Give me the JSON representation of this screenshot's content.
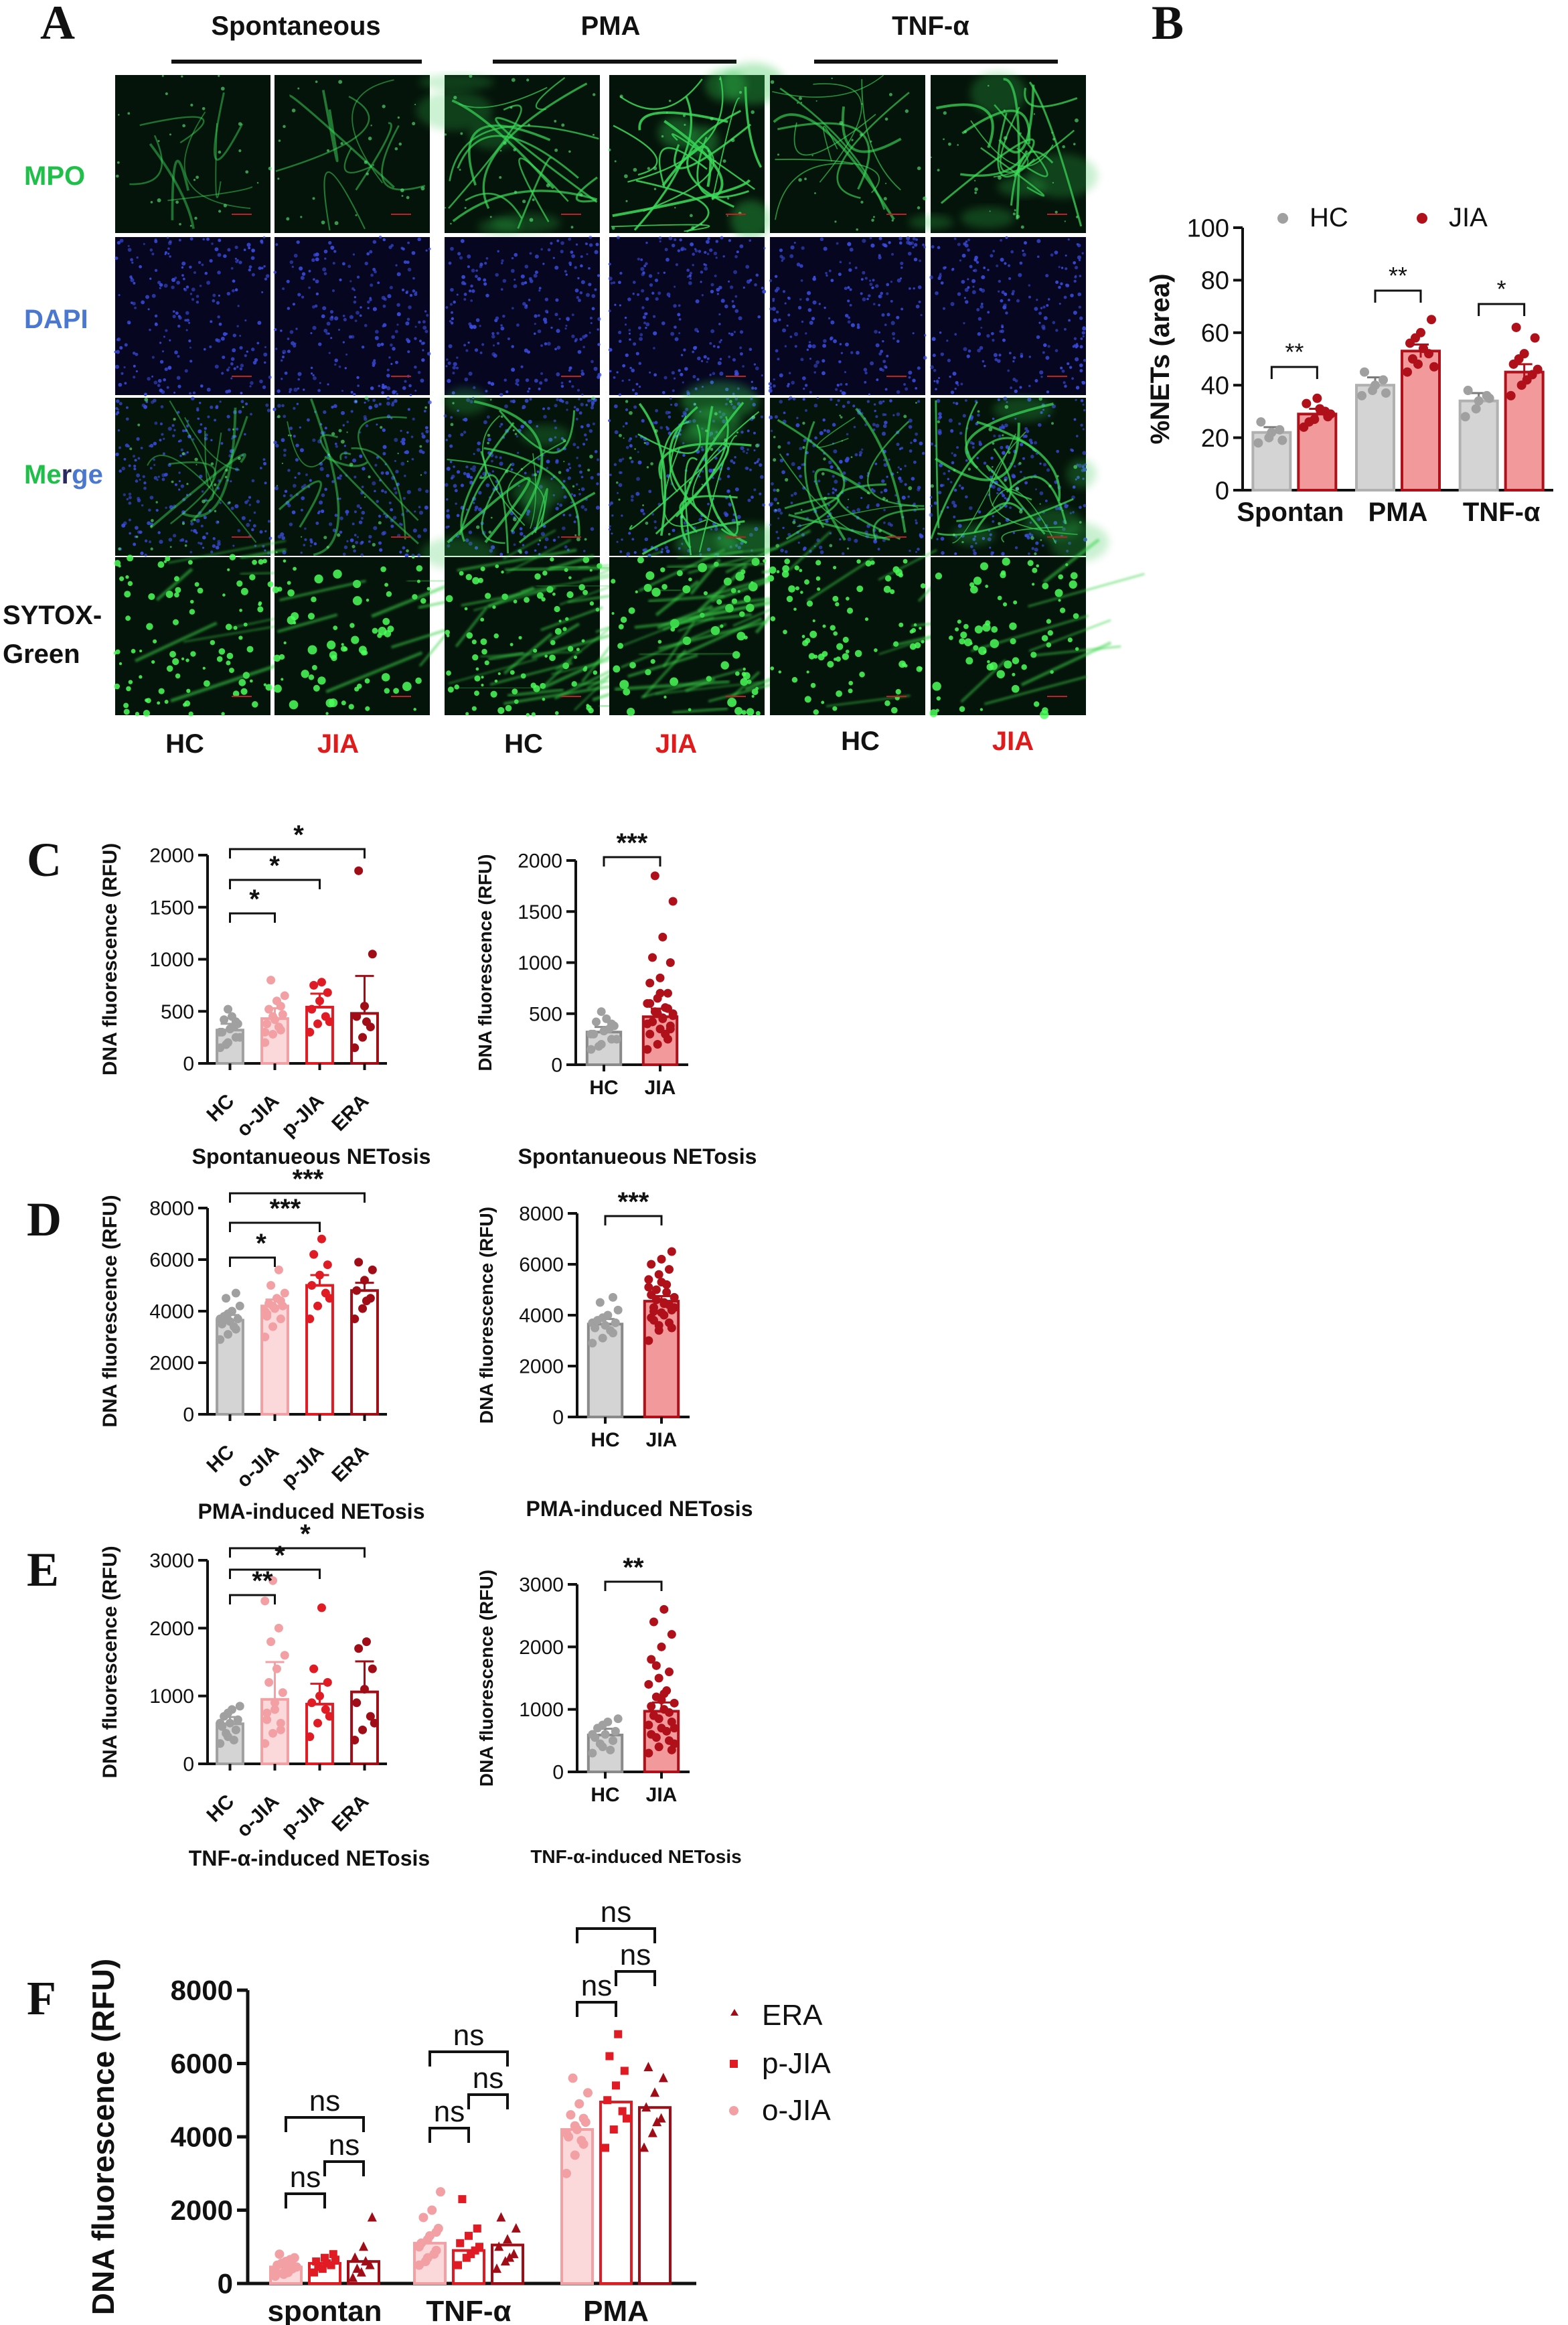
{
  "panels": {
    "A": {
      "letter": "A",
      "columns": [
        "Spontaneous",
        "PMA",
        "TNF-α"
      ],
      "rows": [
        {
          "label": "MPO",
          "color": "#1fbf4a"
        },
        {
          "label": "DAPI",
          "color": "#4a78d0"
        },
        {
          "label_parts": [
            {
              "t": "Me",
              "c": "#1fbf4a"
            },
            {
              "t": "r",
              "c": "#2a2a60"
            },
            {
              "t": "ge",
              "c": "#4a78d0"
            }
          ]
        },
        {
          "label_lines": [
            "SYTOX-",
            "Green"
          ],
          "color": "#111111"
        }
      ],
      "groups": [
        {
          "label": "HC",
          "color": "#111111"
        },
        {
          "label": "JIA",
          "color": "#e01b1b"
        },
        {
          "label": "HC",
          "color": "#111111"
        },
        {
          "label": "JIA",
          "color": "#e01b1b"
        },
        {
          "label": "HC",
          "color": "#111111"
        },
        {
          "label": "JIA",
          "color": "#e01b1b"
        }
      ]
    },
    "B": {
      "letter": "B"
    },
    "C": {
      "letter": "C",
      "caption": "Spontanueous NETosis"
    },
    "D": {
      "letter": "D",
      "caption": "PMA-induced NETosis"
    },
    "E": {
      "letter": "E",
      "caption": "TNF-α-induced NETosis"
    },
    "F": {
      "letter": "F"
    }
  },
  "colors": {
    "hc": "#a0a0a0",
    "hc_bar": "#d4d4d4",
    "jia": "#b0101a",
    "jia_bar": "#f2999c",
    "ojia": "#f2a0a4",
    "pjia": "#e01b24",
    "era": "#a00d17"
  },
  "chart_data": [
    {
      "id": "B",
      "type": "bar",
      "ylabel": "%NETs (area)",
      "ylim": [
        0,
        100
      ],
      "yticks": [
        0,
        20,
        40,
        60,
        80,
        100
      ],
      "categories": [
        "Spontan",
        "PMA",
        "TNF-α"
      ],
      "legend": {
        "position": "top",
        "entries": [
          "HC",
          "JIA"
        ]
      },
      "series": [
        {
          "name": "HC",
          "values": [
            22,
            40,
            34
          ],
          "sem": [
            2,
            3,
            3
          ],
          "points": [
            [
              18,
              20,
              23,
              26,
              22,
              19
            ],
            [
              36,
              38,
              42,
              45,
              40,
              37
            ],
            [
              28,
              31,
              36,
              38,
              34,
              35
            ]
          ]
        },
        {
          "name": "JIA",
          "values": [
            29,
            53,
            45
          ],
          "sem": [
            2,
            2.5,
            3
          ],
          "points": [
            [
              24,
              27,
              30,
              33,
              35,
              28,
              26,
              31,
              29
            ],
            [
              45,
              48,
              52,
              56,
              60,
              65,
              50,
              54,
              47,
              58
            ],
            [
              36,
              40,
              44,
              48,
              52,
              58,
              62,
              42,
              46,
              50
            ]
          ]
        }
      ],
      "significance": [
        {
          "between": [
            0,
            0
          ],
          "label": "**"
        },
        {
          "between": [
            1,
            1
          ],
          "label": "**"
        },
        {
          "between": [
            2,
            2
          ],
          "label": "*"
        }
      ]
    },
    {
      "id": "C-left",
      "type": "bar",
      "ylabel": "DNA fluorescence (RFU)",
      "ylim": [
        0,
        2000
      ],
      "yticks": [
        0,
        500,
        1000,
        1500,
        2000
      ],
      "categories": [
        "HC",
        "o-JIA",
        "p-JIA",
        "ERA"
      ],
      "values": [
        320,
        430,
        540,
        480
      ],
      "err": [
        60,
        100,
        130,
        360
      ],
      "points": [
        [
          150,
          200,
          250,
          300,
          330,
          380,
          420,
          450,
          250,
          180,
          350,
          300,
          520,
          400
        ],
        [
          200,
          280,
          320,
          380,
          420,
          470,
          520,
          600,
          650,
          800,
          350,
          300,
          450,
          550
        ],
        [
          300,
          380,
          450,
          520,
          600,
          680,
          750,
          780,
          400
        ],
        [
          150,
          250,
          350,
          450,
          550,
          1050,
          1850,
          400
        ]
      ],
      "significance": [
        {
          "pair": [
            "HC",
            "o-JIA"
          ],
          "label": "*"
        },
        {
          "pair": [
            "HC",
            "p-JIA"
          ],
          "label": "*"
        },
        {
          "pair": [
            "HC",
            "ERA"
          ],
          "label": "*"
        }
      ]
    },
    {
      "id": "C-right",
      "type": "bar",
      "ylabel": "DNA fluorescence (RFU)",
      "ylim": [
        0,
        2000
      ],
      "yticks": [
        0,
        500,
        1000,
        1500,
        2000
      ],
      "categories": [
        "HC",
        "JIA"
      ],
      "values": [
        320,
        470
      ],
      "err": [
        50,
        80
      ],
      "points": [
        [
          150,
          200,
          250,
          300,
          330,
          380,
          420,
          450,
          250,
          180,
          350,
          300,
          520,
          400
        ],
        [
          150,
          200,
          250,
          300,
          350,
          380,
          420,
          450,
          480,
          520,
          560,
          600,
          650,
          700,
          800,
          850,
          1000,
          1050,
          1250,
          1600,
          1850,
          300,
          400,
          500,
          550,
          600,
          700,
          350,
          420,
          460,
          500
        ]
      ],
      "significance": [
        {
          "pair": [
            "HC",
            "JIA"
          ],
          "label": "***"
        }
      ]
    },
    {
      "id": "D-left",
      "type": "bar",
      "ylabel": "DNA fluorescence (RFU)",
      "ylim": [
        0,
        8000
      ],
      "yticks": [
        0,
        2000,
        4000,
        6000,
        8000
      ],
      "categories": [
        "HC",
        "o-JIA",
        "p-JIA",
        "ERA"
      ],
      "values": [
        3650,
        4200,
        5000,
        4800
      ],
      "err": [
        200,
        250,
        400,
        300
      ],
      "points": [
        [
          2900,
          3100,
          3300,
          3500,
          3600,
          3700,
          3800,
          4000,
          4200,
          4500,
          3400,
          3700,
          3900,
          4700
        ],
        [
          3000,
          3400,
          3700,
          3900,
          4100,
          4200,
          4300,
          4500,
          4700,
          5000,
          5600,
          4000,
          4200,
          4400,
          3800
        ],
        [
          3700,
          4200,
          4700,
          5000,
          5400,
          5800,
          6200,
          6800,
          4500
        ],
        [
          3700,
          4100,
          4500,
          4800,
          5200,
          5600,
          5900,
          4400
        ]
      ],
      "significance": [
        {
          "pair": [
            "HC",
            "o-JIA"
          ],
          "label": "*"
        },
        {
          "pair": [
            "HC",
            "p-JIA"
          ],
          "label": "***"
        },
        {
          "pair": [
            "HC",
            "ERA"
          ],
          "label": "***"
        }
      ]
    },
    {
      "id": "D-right",
      "type": "bar",
      "ylabel": "DNA fluorescence (RFU)",
      "ylim": [
        0,
        8000
      ],
      "yticks": [
        0,
        2000,
        4000,
        6000,
        8000
      ],
      "categories": [
        "HC",
        "JIA"
      ],
      "values": [
        3650,
        4550
      ],
      "err": [
        200,
        200
      ],
      "points": [
        [
          2900,
          3100,
          3300,
          3500,
          3600,
          3700,
          3800,
          4000,
          4200,
          4500,
          3400,
          3700,
          3900,
          4700
        ],
        [
          3000,
          3400,
          3700,
          3900,
          4100,
          4200,
          4300,
          4500,
          4700,
          5000,
          5200,
          5400,
          5600,
          5800,
          6000,
          6200,
          6500,
          3800,
          4000,
          4300,
          4600,
          4900,
          5100,
          3600,
          4400,
          4800,
          5300,
          3500,
          4150,
          4450
        ]
      ],
      "significance": [
        {
          "pair": [
            "HC",
            "JIA"
          ],
          "label": "***"
        }
      ]
    },
    {
      "id": "E-left",
      "type": "bar",
      "ylabel": "DNA fluorescence (RFU)",
      "ylim": [
        0,
        3000
      ],
      "yticks": [
        0,
        1000,
        2000,
        3000
      ],
      "categories": [
        "HC",
        "o-JIA",
        "p-JIA",
        "ERA"
      ],
      "values": [
        590,
        950,
        880,
        1060
      ],
      "err": [
        100,
        550,
        300,
        450
      ],
      "points": [
        [
          300,
          400,
          500,
          550,
          600,
          650,
          700,
          800,
          850,
          450,
          350,
          600,
          750,
          500
        ],
        [
          300,
          450,
          600,
          750,
          900,
          1050,
          1200,
          1400,
          1600,
          1800,
          2000,
          2400,
          2700,
          500,
          650,
          800
        ],
        [
          400,
          600,
          800,
          900,
          1000,
          1200,
          1400,
          2300,
          700
        ],
        [
          350,
          500,
          700,
          900,
          1100,
          1400,
          1700,
          1800,
          600
        ]
      ],
      "significance": [
        {
          "pair": [
            "HC",
            "o-JIA"
          ],
          "label": "**"
        },
        {
          "pair": [
            "HC",
            "p-JIA"
          ],
          "label": "*"
        },
        {
          "pair": [
            "HC",
            "ERA"
          ],
          "label": "*"
        }
      ]
    },
    {
      "id": "E-right",
      "type": "bar",
      "ylabel": "DNA fluorescence (RFU)",
      "ylim": [
        0,
        3000
      ],
      "yticks": [
        0,
        1000,
        2000,
        3000
      ],
      "categories": [
        "HC",
        "JIA"
      ],
      "values": [
        590,
        970
      ],
      "err": [
        100,
        140
      ],
      "points": [
        [
          300,
          400,
          500,
          550,
          600,
          650,
          700,
          800,
          850,
          450,
          350,
          600,
          750,
          500
        ],
        [
          300,
          400,
          500,
          600,
          700,
          800,
          900,
          1000,
          1100,
          1200,
          1300,
          1400,
          1500,
          1600,
          1800,
          2000,
          2200,
          2400,
          2600,
          450,
          550,
          650,
          750,
          850,
          950,
          1050,
          1150,
          350,
          900,
          1250,
          700,
          1700
        ]
      ],
      "significance": [
        {
          "pair": [
            "HC",
            "JIA"
          ],
          "label": "**"
        }
      ]
    },
    {
      "id": "F",
      "type": "bar",
      "ylabel": "DNA fluorescence (RFU)",
      "ylim": [
        0,
        8000
      ],
      "yticks": [
        0,
        2000,
        4000,
        6000,
        8000
      ],
      "categories": [
        "spontan",
        "TNF-α",
        "PMA"
      ],
      "legend": {
        "position": "right",
        "entries": [
          "ERA",
          "p-JIA",
          "o-JIA"
        ]
      },
      "series": [
        {
          "name": "o-JIA",
          "values": [
            450,
            1100,
            4200
          ],
          "points": [
            [
              200,
              300,
              400,
              500,
              600,
              700,
              800,
              300,
              450,
              550,
              650,
              350,
              250,
              500
            ],
            [
              500,
              700,
              900,
              1100,
              1300,
              1500,
              1800,
              2000,
              2500,
              600,
              800,
              1000,
              1200,
              1400
            ],
            [
              3000,
              3500,
              3800,
              4000,
              4200,
              4400,
              4600,
              4900,
              5200,
              5600,
              3900,
              4100,
              4300,
              4500
            ]
          ]
        },
        {
          "name": "p-JIA",
          "values": [
            550,
            900,
            4950
          ],
          "points": [
            [
              300,
              400,
              500,
              600,
              700,
              800,
              450,
              550,
              650
            ],
            [
              500,
              700,
              900,
              1100,
              1300,
              1500,
              2300,
              800,
              1000
            ],
            [
              3700,
              4200,
              4700,
              5000,
              5400,
              5800,
              6200,
              6800,
              4500
            ]
          ]
        },
        {
          "name": "ERA",
          "values": [
            600,
            1050,
            4800
          ],
          "points": [
            [
              150,
              300,
              500,
              700,
              1000,
              1800,
              400,
              600
            ],
            [
              400,
              600,
              800,
              1000,
              1200,
              1500,
              1800,
              700
            ],
            [
              3700,
              4100,
              4500,
              4800,
              5200,
              5600,
              5900,
              4400
            ]
          ]
        }
      ],
      "significance": [
        {
          "group": "spontan",
          "pair": [
            "o-JIA",
            "p-JIA"
          ],
          "label": "ns"
        },
        {
          "group": "spontan",
          "pair": [
            "p-JIA",
            "ERA"
          ],
          "label": "ns"
        },
        {
          "group": "spontan",
          "pair": [
            "o-JIA",
            "ERA"
          ],
          "label": "ns"
        },
        {
          "group": "TNF-α",
          "pair": [
            "o-JIA",
            "p-JIA"
          ],
          "label": "ns"
        },
        {
          "group": "TNF-α",
          "pair": [
            "p-JIA",
            "ERA"
          ],
          "label": "ns"
        },
        {
          "group": "TNF-α",
          "pair": [
            "o-JIA",
            "ERA"
          ],
          "label": "ns"
        },
        {
          "group": "PMA",
          "pair": [
            "o-JIA",
            "p-JIA"
          ],
          "label": "ns"
        },
        {
          "group": "PMA",
          "pair": [
            "p-JIA",
            "ERA"
          ],
          "label": "ns"
        },
        {
          "group": "PMA",
          "pair": [
            "o-JIA",
            "ERA"
          ],
          "label": "ns"
        }
      ]
    }
  ]
}
